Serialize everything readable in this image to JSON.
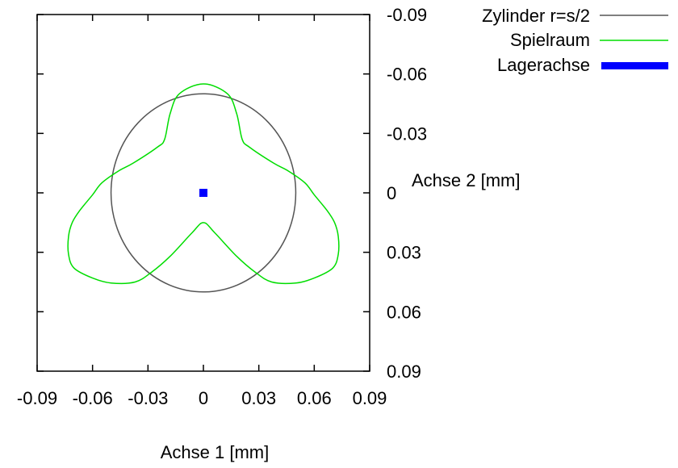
{
  "chart_data": {
    "type": "line",
    "xlabel": "Achse 1 [mm]",
    "ylabel": "Achse 2 [mm]",
    "xlim": [
      -0.09,
      0.09
    ],
    "ylim": [
      -0.09,
      0.09
    ],
    "y_axis_inverted": true,
    "y_axis_side": "right",
    "grid": false,
    "legend_position": "top-right",
    "x_ticks": [
      -0.09,
      -0.06,
      -0.03,
      0,
      0.03,
      0.06,
      0.09
    ],
    "x_tick_labels": [
      "-0.09",
      "-0.06",
      "-0.03",
      "0",
      "0.03",
      "0.06",
      "0.09"
    ],
    "y_ticks": [
      -0.09,
      -0.06,
      -0.03,
      0,
      0.03,
      0.06,
      0.09
    ],
    "y_tick_labels": [
      "-0.09",
      "-0.06",
      "-0.03",
      "0",
      "0.03",
      "0.06",
      "0.09"
    ],
    "series": [
      {
        "name": "Zylinder r=s/2",
        "kind": "circle",
        "color": "#555555",
        "center": [
          0,
          0
        ],
        "radius": 0.05
      },
      {
        "name": "Spielraum",
        "kind": "closed-curve",
        "color": "#00dd00",
        "x": [
          0,
          0.013,
          0.018,
          0.021,
          0.025,
          0.038,
          0.046,
          0.055,
          0.06,
          0.067,
          0.071,
          0.073,
          0.073,
          0.07,
          0.06,
          0.05,
          0.037,
          0.028,
          0.018,
          0.006,
          0,
          -0.006,
          -0.018,
          -0.028,
          -0.037,
          -0.05,
          -0.06,
          -0.07,
          -0.073,
          -0.073,
          -0.071,
          -0.067,
          -0.06,
          -0.055,
          -0.046,
          -0.038,
          -0.025,
          -0.021,
          -0.018,
          -0.013,
          0
        ],
        "y": [
          -0.055,
          -0.05,
          -0.04,
          -0.027,
          -0.023,
          -0.015,
          -0.011,
          -0.005,
          0.001,
          0.009,
          0.015,
          0.022,
          0.031,
          0.038,
          0.043,
          0.0455,
          0.045,
          0.04,
          0.032,
          0.02,
          0.015,
          0.02,
          0.032,
          0.04,
          0.045,
          0.0455,
          0.043,
          0.038,
          0.031,
          0.022,
          0.015,
          0.009,
          0.001,
          -0.005,
          -0.011,
          -0.015,
          -0.023,
          -0.027,
          -0.04,
          -0.05,
          -0.055
        ]
      },
      {
        "name": "Lagerachse",
        "kind": "point",
        "color": "#0000ff",
        "x": [
          0
        ],
        "y": [
          0
        ]
      }
    ]
  }
}
